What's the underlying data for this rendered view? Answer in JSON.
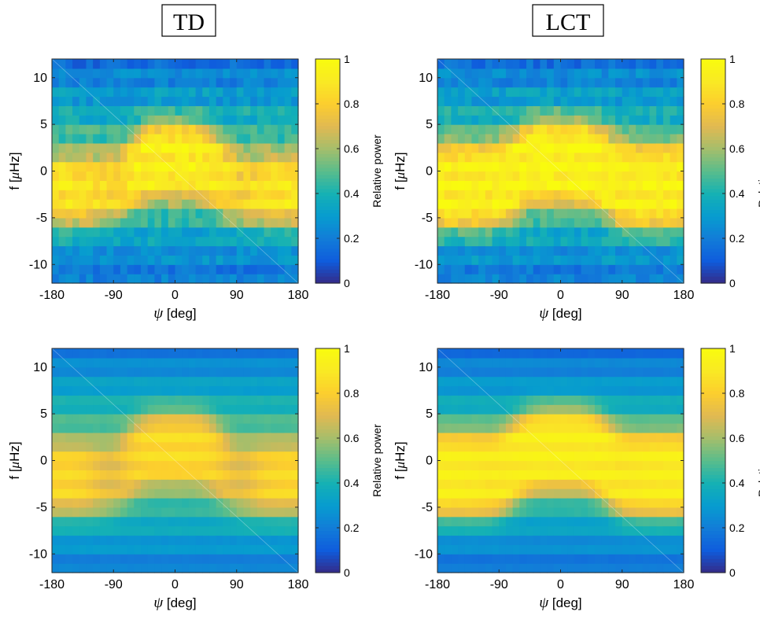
{
  "column_titles": [
    "TD",
    "LCT"
  ],
  "chart_data": [
    {
      "type": "heatmap",
      "column": "TD",
      "row": 1,
      "smooth": false,
      "xlabel_symbol": "ψ",
      "xlabel_unit": "[deg]",
      "ylabel_text": "f [",
      "ylabel_symbol": "μ",
      "ylabel_unit": "Hz]",
      "xlim": [
        -180,
        180
      ],
      "ylim": [
        -12,
        12
      ],
      "xticks": [
        -180,
        -90,
        0,
        90,
        180
      ],
      "yticks": [
        -10,
        -5,
        0,
        5,
        10
      ],
      "colorbar": {
        "label": "Relative power",
        "range": [
          0,
          1
        ],
        "ticks": [
          0,
          0.2,
          0.4,
          0.6,
          0.8,
          1
        ],
        "colormap": "parula"
      },
      "model": {
        "center_mid": 1.2,
        "center_edge": -2.0,
        "hw_mid": 1.8,
        "hw_edge": 1.4,
        "amp_mid": 0.93,
        "amp_edge": 0.88,
        "dip_amp": 0.82,
        "floor": 0.24,
        "edge_power": 0.28
      }
    },
    {
      "type": "heatmap",
      "column": "LCT",
      "row": 1,
      "smooth": false,
      "xlabel_symbol": "ψ",
      "xlabel_unit": "[deg]",
      "ylabel_text": "f [",
      "ylabel_symbol": "μ",
      "ylabel_unit": "Hz]",
      "xlim": [
        -180,
        180
      ],
      "ylim": [
        -12,
        12
      ],
      "xticks": [
        -180,
        -90,
        0,
        90,
        180
      ],
      "yticks": [
        -10,
        -5,
        0,
        5,
        10
      ],
      "colorbar": {
        "label": "Relative power",
        "range": [
          0,
          1
        ],
        "ticks": [
          0,
          0.2,
          0.4,
          0.6,
          0.8,
          1
        ],
        "colormap": "parula"
      },
      "model": {
        "center_mid": 1.0,
        "center_edge": -1.6,
        "hw_mid": 2.3,
        "hw_edge": 2.3,
        "amp_mid": 0.95,
        "amp_edge": 0.93,
        "dip_amp": 0.93,
        "floor": 0.25,
        "edge_power": 0.26
      }
    },
    {
      "type": "heatmap",
      "column": "TD",
      "row": 2,
      "smooth": true,
      "xlabel_symbol": "ψ",
      "xlabel_unit": "[deg]",
      "ylabel_text": "f [",
      "ylabel_symbol": "μ",
      "ylabel_unit": "Hz]",
      "xlim": [
        -180,
        180
      ],
      "ylim": [
        -12,
        12
      ],
      "xticks": [
        -180,
        -90,
        0,
        90,
        180
      ],
      "yticks": [
        -10,
        -5,
        0,
        5,
        10
      ],
      "colorbar": {
        "label": "Relative power",
        "range": [
          0,
          1
        ],
        "ticks": [
          0,
          0.2,
          0.4,
          0.6,
          0.8,
          1
        ],
        "colormap": "parula"
      },
      "model": {
        "center_mid": 1.3,
        "center_edge": -1.9,
        "hw_mid": 1.6,
        "hw_edge": 1.5,
        "amp_mid": 0.84,
        "amp_edge": 0.83,
        "dip_amp": 0.72,
        "floor": 0.26,
        "edge_power": 0.26
      }
    },
    {
      "type": "heatmap",
      "column": "LCT",
      "row": 2,
      "smooth": true,
      "xlabel_symbol": "ψ",
      "xlabel_unit": "[deg]",
      "ylabel_text": "f [",
      "ylabel_symbol": "μ",
      "ylabel_unit": "Hz]",
      "xlim": [
        -180,
        180
      ],
      "ylim": [
        -12,
        12
      ],
      "xticks": [
        -180,
        -90,
        0,
        90,
        180
      ],
      "yticks": [
        -10,
        -5,
        0,
        5,
        10
      ],
      "colorbar": {
        "label": "Relative power",
        "range": [
          0,
          1
        ],
        "ticks": [
          0,
          0.2,
          0.4,
          0.6,
          0.8,
          1
        ],
        "colormap": "parula"
      },
      "model": {
        "center_mid": 1.2,
        "center_edge": -1.5,
        "hw_mid": 2.2,
        "hw_edge": 2.3,
        "amp_mid": 0.92,
        "amp_edge": 0.92,
        "dip_amp": 0.9,
        "floor": 0.23,
        "edge_power": 0.22
      }
    }
  ]
}
